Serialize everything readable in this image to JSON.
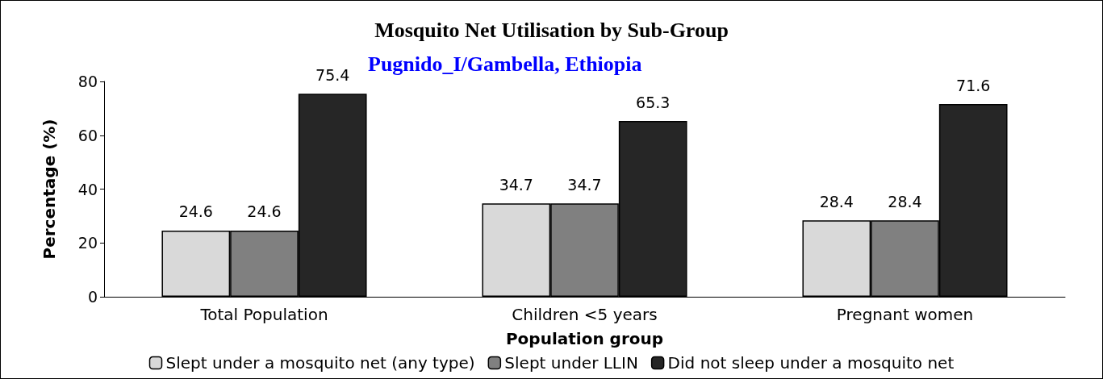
{
  "chart_data": {
    "type": "bar",
    "title": "Mosquito Net Utilisation by Sub-Group",
    "subtitle": "Pugnido_I/Gambella, Ethiopia",
    "xlabel": "Population group",
    "ylabel": "Percentage (%)",
    "categories": [
      "Total Population",
      "Children <5 years",
      "Pregnant women"
    ],
    "series": [
      {
        "name": "Slept under a mosquito net (any type)",
        "color": "#d9d9d9",
        "values": [
          24.6,
          34.7,
          28.4
        ]
      },
      {
        "name": "Slept under LLIN",
        "color": "#808080",
        "values": [
          24.6,
          34.7,
          28.4
        ]
      },
      {
        "name": "Did not sleep under a mosquito net",
        "color": "#262626",
        "values": [
          75.4,
          65.3,
          71.6
        ]
      }
    ],
    "ylim": [
      0,
      80
    ],
    "yticks": [
      0,
      20,
      40,
      60,
      80
    ],
    "grid": false,
    "legend": "bottom",
    "data_labels": true
  }
}
